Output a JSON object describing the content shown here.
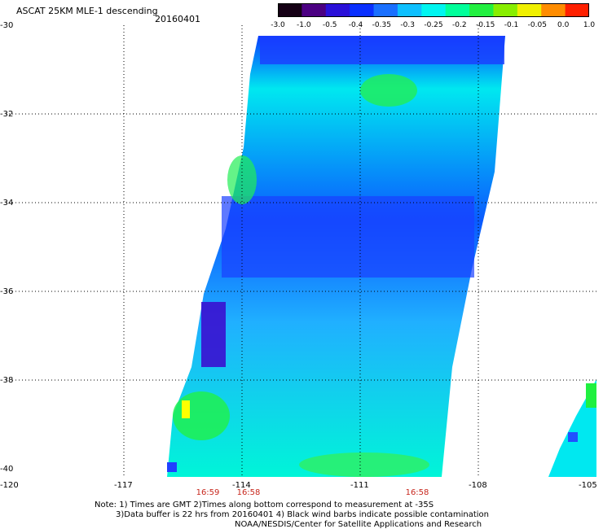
{
  "title": "ASCAT 25KM MLE-1 descending",
  "date": "20160401",
  "colorbar": {
    "labels": [
      "-3.0",
      "-1.0",
      "-0.5",
      "-0.4",
      "-0.35",
      "-0.3",
      "-0.25",
      "-0.2",
      "-0.15",
      "-0.1",
      "-0.05",
      "0.0",
      "1.0"
    ],
    "colors": [
      "#140014",
      "#4b0082",
      "#2a10d8",
      "#0a30ff",
      "#1a70ff",
      "#0ec0ff",
      "#00f5f0",
      "#00ff9a",
      "#22f040",
      "#88ee00",
      "#f0f000",
      "#ff8c00",
      "#ff2000"
    ]
  },
  "axes": {
    "lat_labels": [
      "-30",
      "-32",
      "-34",
      "-36",
      "-38",
      "-40"
    ],
    "lon_labels": [
      "-120",
      "-117",
      "-114",
      "-111",
      "-108",
      "-105"
    ]
  },
  "times": [
    "16:59",
    "16:58",
    "16:58"
  ],
  "notes": {
    "line1": "Note: 1) Times are GMT 2)Times along bottom correspond to measurement at -35S",
    "line2": "3)Data buffer is 22 hrs from 20160401 4) Black wind barbs indicate possible contamination",
    "line3": "NOAA/NESDIS/Center for Satellite Applications and Research"
  }
}
